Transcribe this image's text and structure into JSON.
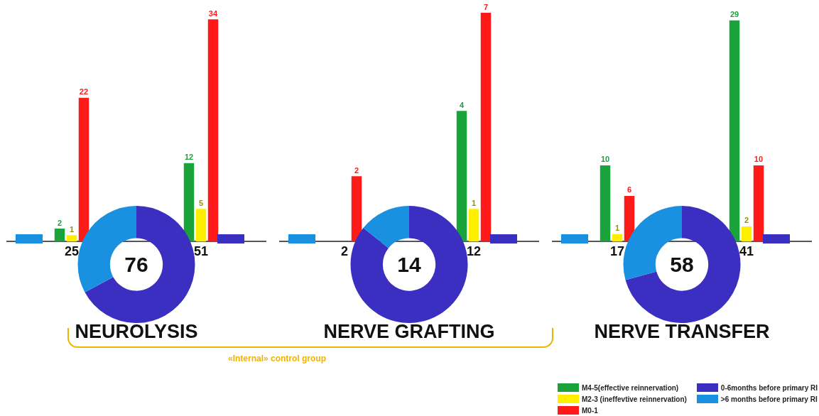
{
  "chart_data": [
    {
      "type": "bar",
      "categories": [
        "25",
        "51"
      ],
      "series": [
        {
          "name": "M4-5(effective reinnervation)",
          "color": "#1aa33a",
          "values": [
            2,
            12
          ]
        },
        {
          "name": "M2-3  (ineffevtive reinnervation)",
          "color": "#ffee00",
          "values": [
            1,
            5
          ]
        },
        {
          "name": "M0-1",
          "color": "#ff1a1a",
          "values": [
            22,
            34
          ]
        }
      ],
      "data_labels": true,
      "grid": false,
      "tick_labels": "x",
      "legend": "bottom right"
    },
    {
      "type": "donut",
      "title": "NEUROLYSIS",
      "categories": [
        "0-6months before primary RI",
        ">6 months before primary RI"
      ],
      "values": [
        67.1,
        32.9
      ],
      "colors": [
        "#3a2fc0",
        "#1a90e0"
      ],
      "annotations": [
        "76",
        "«Internal» control group"
      ],
      "legend": "bottom right"
    },
    {
      "type": "bar",
      "categories": [
        "2",
        "12"
      ],
      "series": [
        {
          "color": "#1aa33a",
          "values": [
            null,
            4
          ]
        },
        {
          "color": "#ffee00",
          "values": [
            null,
            1
          ]
        },
        {
          "color": "#ff1a1a",
          "values": [
            2,
            7
          ]
        }
      ],
      "data_labels": true,
      "grid": false,
      "tick_labels": "x"
    },
    {
      "type": "donut",
      "title": "NERVE GRAFTING",
      "categories": [
        null,
        null
      ],
      "values": [
        85.7,
        14.3
      ],
      "colors": [
        "#3a2fc0",
        "#1a90e0"
      ],
      "annotations": [
        "14"
      ]
    },
    {
      "type": "bar",
      "categories": [
        "17",
        "41"
      ],
      "series": [
        {
          "color": "#1aa33a",
          "values": [
            10,
            29
          ]
        },
        {
          "color": "#ffee00",
          "values": [
            1,
            2
          ]
        },
        {
          "color": "#ff1a1a",
          "values": [
            6,
            10
          ]
        }
      ],
      "data_labels": true,
      "grid": false,
      "tick_labels": "x"
    },
    {
      "type": "donut",
      "title": "NERVE TRANSFER",
      "categories": [
        null,
        null
      ],
      "values": [
        70.7,
        29.3
      ],
      "colors": [
        "#3a2fc0",
        "#1a90e0"
      ],
      "annotations": [
        "58"
      ]
    }
  ]
}
